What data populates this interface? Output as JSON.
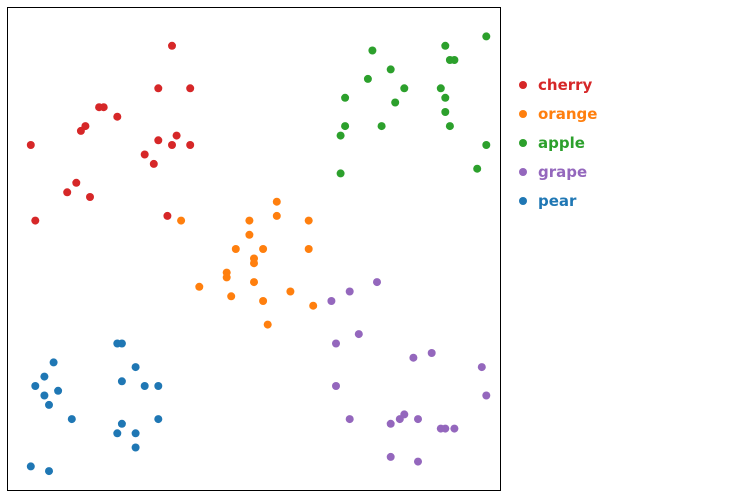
{
  "chart_data": {
    "type": "scatter",
    "title": "",
    "xlabel": "",
    "ylabel": "",
    "xlim": [
      0,
      100
    ],
    "ylim": [
      0,
      100
    ],
    "grid": false,
    "legend_placement": "right-top-outside",
    "series": [
      {
        "name": "cherry",
        "color": "#d62728",
        "points": [
          [
            36,
            94
          ],
          [
            33,
            85
          ],
          [
            40,
            85
          ],
          [
            20,
            81
          ],
          [
            21,
            81
          ],
          [
            24,
            79
          ],
          [
            16,
            76
          ],
          [
            17,
            77
          ],
          [
            5,
            73
          ],
          [
            33,
            74
          ],
          [
            36,
            73
          ],
          [
            37,
            75
          ],
          [
            40,
            73
          ],
          [
            30,
            71
          ],
          [
            32,
            69
          ],
          [
            15,
            65
          ],
          [
            13,
            63
          ],
          [
            18,
            62
          ],
          [
            6,
            57
          ],
          [
            35,
            58
          ]
        ]
      },
      {
        "name": "orange",
        "color": "#ff7f0e",
        "points": [
          [
            59,
            61
          ],
          [
            38,
            57
          ],
          [
            53,
            57
          ],
          [
            59,
            58
          ],
          [
            66,
            57
          ],
          [
            53,
            54
          ],
          [
            50,
            51
          ],
          [
            56,
            51
          ],
          [
            66,
            51
          ],
          [
            54,
            49
          ],
          [
            54,
            48
          ],
          [
            48,
            46
          ],
          [
            48,
            45
          ],
          [
            54,
            44
          ],
          [
            42,
            43
          ],
          [
            62,
            42
          ],
          [
            49,
            41
          ],
          [
            56,
            40
          ],
          [
            67,
            39
          ],
          [
            57,
            35
          ]
        ]
      },
      {
        "name": "apple",
        "color": "#2ca02c",
        "points": [
          [
            105,
            96
          ],
          [
            96,
            94
          ],
          [
            80,
            93
          ],
          [
            97,
            91
          ],
          [
            98,
            91
          ],
          [
            84,
            89
          ],
          [
            79,
            87
          ],
          [
            95,
            85
          ],
          [
            87,
            85
          ],
          [
            96,
            83
          ],
          [
            74,
            83
          ],
          [
            85,
            82
          ],
          [
            96,
            80
          ],
          [
            82,
            77
          ],
          [
            74,
            77
          ],
          [
            97,
            77
          ],
          [
            73,
            75
          ],
          [
            105,
            73
          ],
          [
            103,
            68
          ],
          [
            73,
            67
          ]
        ]
      },
      {
        "name": "grape",
        "color": "#9467bd",
        "points": [
          [
            81,
            44
          ],
          [
            75,
            42
          ],
          [
            71,
            40
          ],
          [
            77,
            33
          ],
          [
            72,
            31
          ],
          [
            93,
            29
          ],
          [
            89,
            28
          ],
          [
            104,
            26
          ],
          [
            72,
            22
          ],
          [
            105,
            20
          ],
          [
            87,
            16
          ],
          [
            86,
            15
          ],
          [
            90,
            15
          ],
          [
            75,
            15
          ],
          [
            84,
            14
          ],
          [
            96,
            13
          ],
          [
            95,
            13
          ],
          [
            98,
            13
          ],
          [
            84,
            7
          ],
          [
            90,
            6
          ]
        ]
      },
      {
        "name": "pear",
        "color": "#1f77b4",
        "points": [
          [
            24,
            31
          ],
          [
            25,
            31
          ],
          [
            10,
            27
          ],
          [
            28,
            26
          ],
          [
            8,
            24
          ],
          [
            25,
            23
          ],
          [
            6,
            22
          ],
          [
            30,
            22
          ],
          [
            33,
            22
          ],
          [
            11,
            21
          ],
          [
            8,
            20
          ],
          [
            9,
            18
          ],
          [
            14,
            15
          ],
          [
            33,
            15
          ],
          [
            25,
            14
          ],
          [
            24,
            12
          ],
          [
            28,
            12
          ],
          [
            28,
            9
          ],
          [
            5,
            5
          ],
          [
            9,
            4
          ]
        ]
      }
    ]
  }
}
